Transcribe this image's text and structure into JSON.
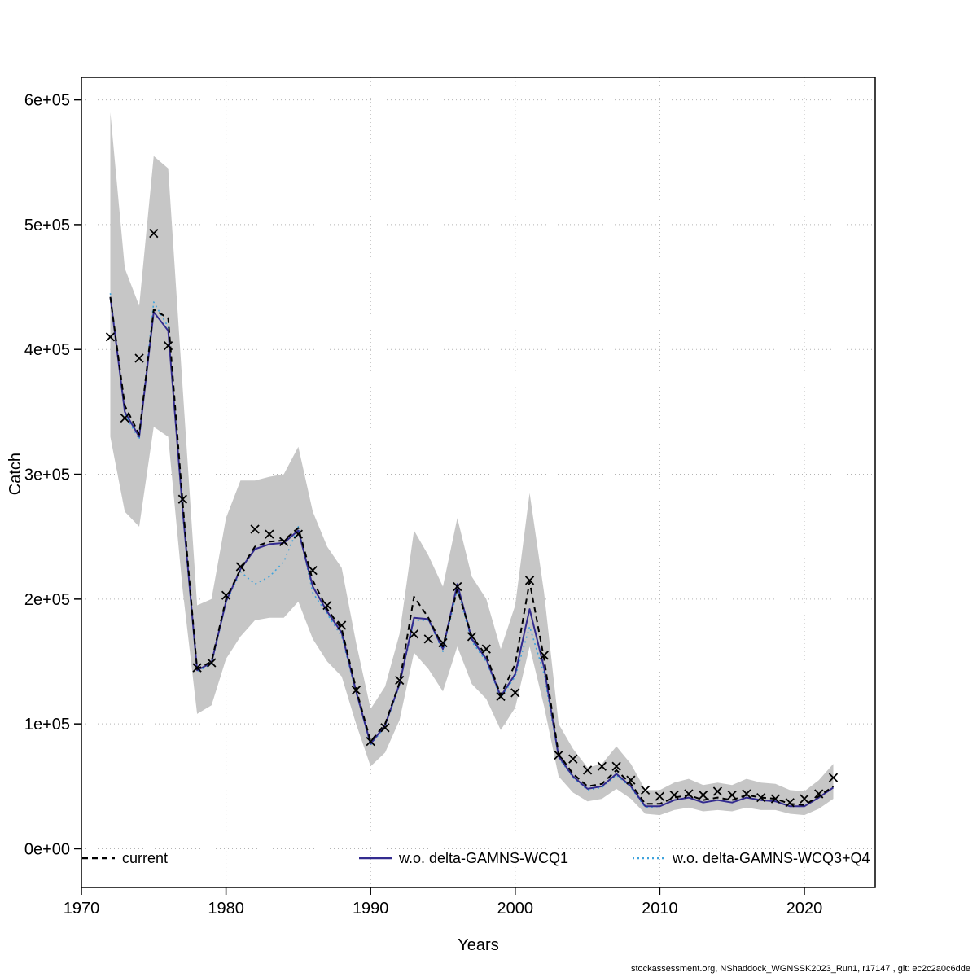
{
  "figure": {
    "xlabel": "Years",
    "ylabel": "Catch",
    "footer": "stockassessment.org, NShaddock_WGNSSK2023_Run1, r17147 , git: ec2c2a0c6dde"
  },
  "chart_data": {
    "type": "line",
    "title": "",
    "xlabel": "Years",
    "ylabel": "Catch",
    "xlim": [
      1970,
      2024.9
    ],
    "ylim": [
      -31000,
      618000
    ],
    "x_ticks": [
      1970,
      1980,
      1990,
      2000,
      2010,
      2020
    ],
    "x_tick_labels": [
      "1970",
      "1980",
      "1990",
      "2000",
      "2010",
      "2020"
    ],
    "y_ticks": [
      0,
      100000,
      200000,
      300000,
      400000,
      500000,
      600000
    ],
    "y_tick_labels": [
      "0e+00",
      "1e+05",
      "2e+05",
      "3e+05",
      "4e+05",
      "5e+05",
      "6e+05"
    ],
    "grid": true,
    "grid_color": "#b3b3b3",
    "band_color": "#c6c6c6",
    "marker_color": "#000000",
    "legend_position": "bottom-inside",
    "years": [
      1972,
      1973,
      1974,
      1975,
      1976,
      1977,
      1978,
      1979,
      1980,
      1981,
      1982,
      1983,
      1984,
      1985,
      1986,
      1987,
      1988,
      1989,
      1990,
      1991,
      1992,
      1993,
      1994,
      1995,
      1996,
      1997,
      1998,
      1999,
      2000,
      2001,
      2002,
      2003,
      2004,
      2005,
      2006,
      2007,
      2008,
      2009,
      2010,
      2011,
      2012,
      2013,
      2014,
      2015,
      2016,
      2017,
      2018,
      2019,
      2020,
      2021,
      2022
    ],
    "observations": [
      410000,
      345000,
      393000,
      493000,
      403000,
      280000,
      145000,
      149000,
      203000,
      226000,
      256000,
      252000,
      246000,
      252000,
      223000,
      195000,
      179000,
      127000,
      86000,
      97000,
      135000,
      172000,
      168000,
      165000,
      210000,
      170000,
      160000,
      122000,
      125000,
      215000,
      155000,
      75000,
      72000,
      63000,
      66000,
      66000,
      55000,
      47000,
      42000,
      43000,
      44000,
      43000,
      46000,
      43000,
      44000,
      41000,
      40000,
      37000,
      40000,
      44000,
      57000
    ],
    "series": [
      {
        "name": "current",
        "color": "#000000",
        "dash": "7,5",
        "width": 2,
        "values": [
          442000,
          355000,
          332000,
          432000,
          425000,
          278000,
          144000,
          150000,
          200000,
          224000,
          242000,
          246000,
          247000,
          257000,
          215000,
          192000,
          176000,
          128000,
          86000,
          100000,
          133000,
          202000,
          185000,
          162000,
          208000,
          170000,
          155000,
          123000,
          148000,
          214000,
          152000,
          76000,
          60000,
          50000,
          52000,
          63000,
          52000,
          36000,
          36000,
          41000,
          43000,
          39000,
          41000,
          39000,
          43000,
          41000,
          40000,
          36000,
          35000,
          42000,
          50000
        ]
      },
      {
        "name": "w.o. delta-GAMNS-WCQ1",
        "color": "#332b8f",
        "dash": "",
        "width": 2,
        "values": [
          442000,
          350000,
          330000,
          430000,
          415000,
          272000,
          143000,
          149000,
          198000,
          224000,
          240000,
          244000,
          245000,
          255000,
          210000,
          190000,
          173000,
          126000,
          84000,
          99000,
          132000,
          185000,
          184000,
          160000,
          212000,
          168000,
          152000,
          122000,
          140000,
          192000,
          145000,
          74000,
          58000,
          48000,
          50000,
          60000,
          50000,
          34000,
          34000,
          39000,
          41000,
          37000,
          39000,
          37000,
          41000,
          39000,
          38000,
          34000,
          34000,
          41000,
          49000
        ]
      },
      {
        "name": "w.o. delta-GAMNS-WCQ3+Q4",
        "color": "#3fa3dc",
        "dash": "2,4",
        "width": 1.6,
        "values": [
          445000,
          348000,
          328000,
          438000,
          418000,
          270000,
          142000,
          148000,
          197000,
          222000,
          212000,
          218000,
          230000,
          258000,
          205000,
          188000,
          170000,
          125000,
          83000,
          98000,
          131000,
          183000,
          183000,
          158000,
          208000,
          166000,
          150000,
          121000,
          138000,
          178000,
          140000,
          73000,
          57000,
          47000,
          49000,
          59000,
          49000,
          33000,
          34000,
          39000,
          41000,
          37000,
          39000,
          37000,
          41000,
          39000,
          38000,
          34000,
          34000,
          41000,
          49000
        ]
      }
    ],
    "band": {
      "upper": [
        590000,
        465000,
        435000,
        555000,
        545000,
        370000,
        195000,
        200000,
        265000,
        295000,
        295000,
        298000,
        300000,
        322000,
        270000,
        242000,
        225000,
        165000,
        112000,
        130000,
        172000,
        255000,
        235000,
        210000,
        265000,
        218000,
        200000,
        160000,
        195000,
        285000,
        205000,
        100000,
        80000,
        65000,
        68000,
        82000,
        68000,
        47000,
        47000,
        53000,
        56000,
        51000,
        53000,
        51000,
        56000,
        53000,
        52000,
        47000,
        46000,
        55000,
        68000
      ],
      "lower": [
        330000,
        270000,
        258000,
        338000,
        330000,
        208000,
        108000,
        115000,
        152000,
        170000,
        183000,
        185000,
        185000,
        198000,
        168000,
        150000,
        138000,
        100000,
        66000,
        77000,
        103000,
        157000,
        144000,
        126000,
        162000,
        132000,
        120000,
        95000,
        113000,
        162000,
        114000,
        58000,
        45000,
        38000,
        40000,
        48000,
        40000,
        28000,
        27000,
        31000,
        33000,
        30000,
        31000,
        30000,
        33000,
        31000,
        31000,
        28000,
        27000,
        32000,
        40000
      ]
    }
  }
}
